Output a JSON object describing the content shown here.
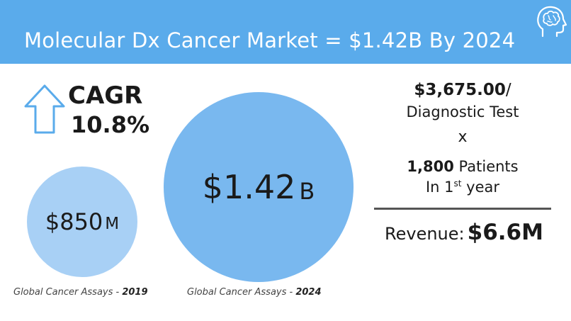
{
  "header": {
    "title": "Molecular Dx Cancer Market = $1.42B By 2024",
    "background_color": "#5aabeb",
    "icon": "brain-head-icon"
  },
  "cagr": {
    "label": "CAGR",
    "value": "10.8%",
    "icon": "up-arrow-icon"
  },
  "market_2019": {
    "value": "$850",
    "unit": "M",
    "caption_text": "Global Cancer Assays - ",
    "caption_year": "2019",
    "color": "#a8d0f5"
  },
  "market_2024": {
    "value": "$1.42",
    "unit": "B",
    "caption_text": "Global Cancer Assays - ",
    "caption_year": "2024",
    "color": "#79b8ef"
  },
  "calculation": {
    "price": "$3,675.00",
    "price_suffix": "/",
    "price_desc": "Diagnostic Test",
    "operator": "x",
    "patients_count": "1,800",
    "patients_label": "Patients",
    "year_prefix": "In 1",
    "year_ordinal": "st",
    "year_suffix": "year",
    "revenue_label": "Revenue:",
    "revenue_value": "$6.6M"
  }
}
